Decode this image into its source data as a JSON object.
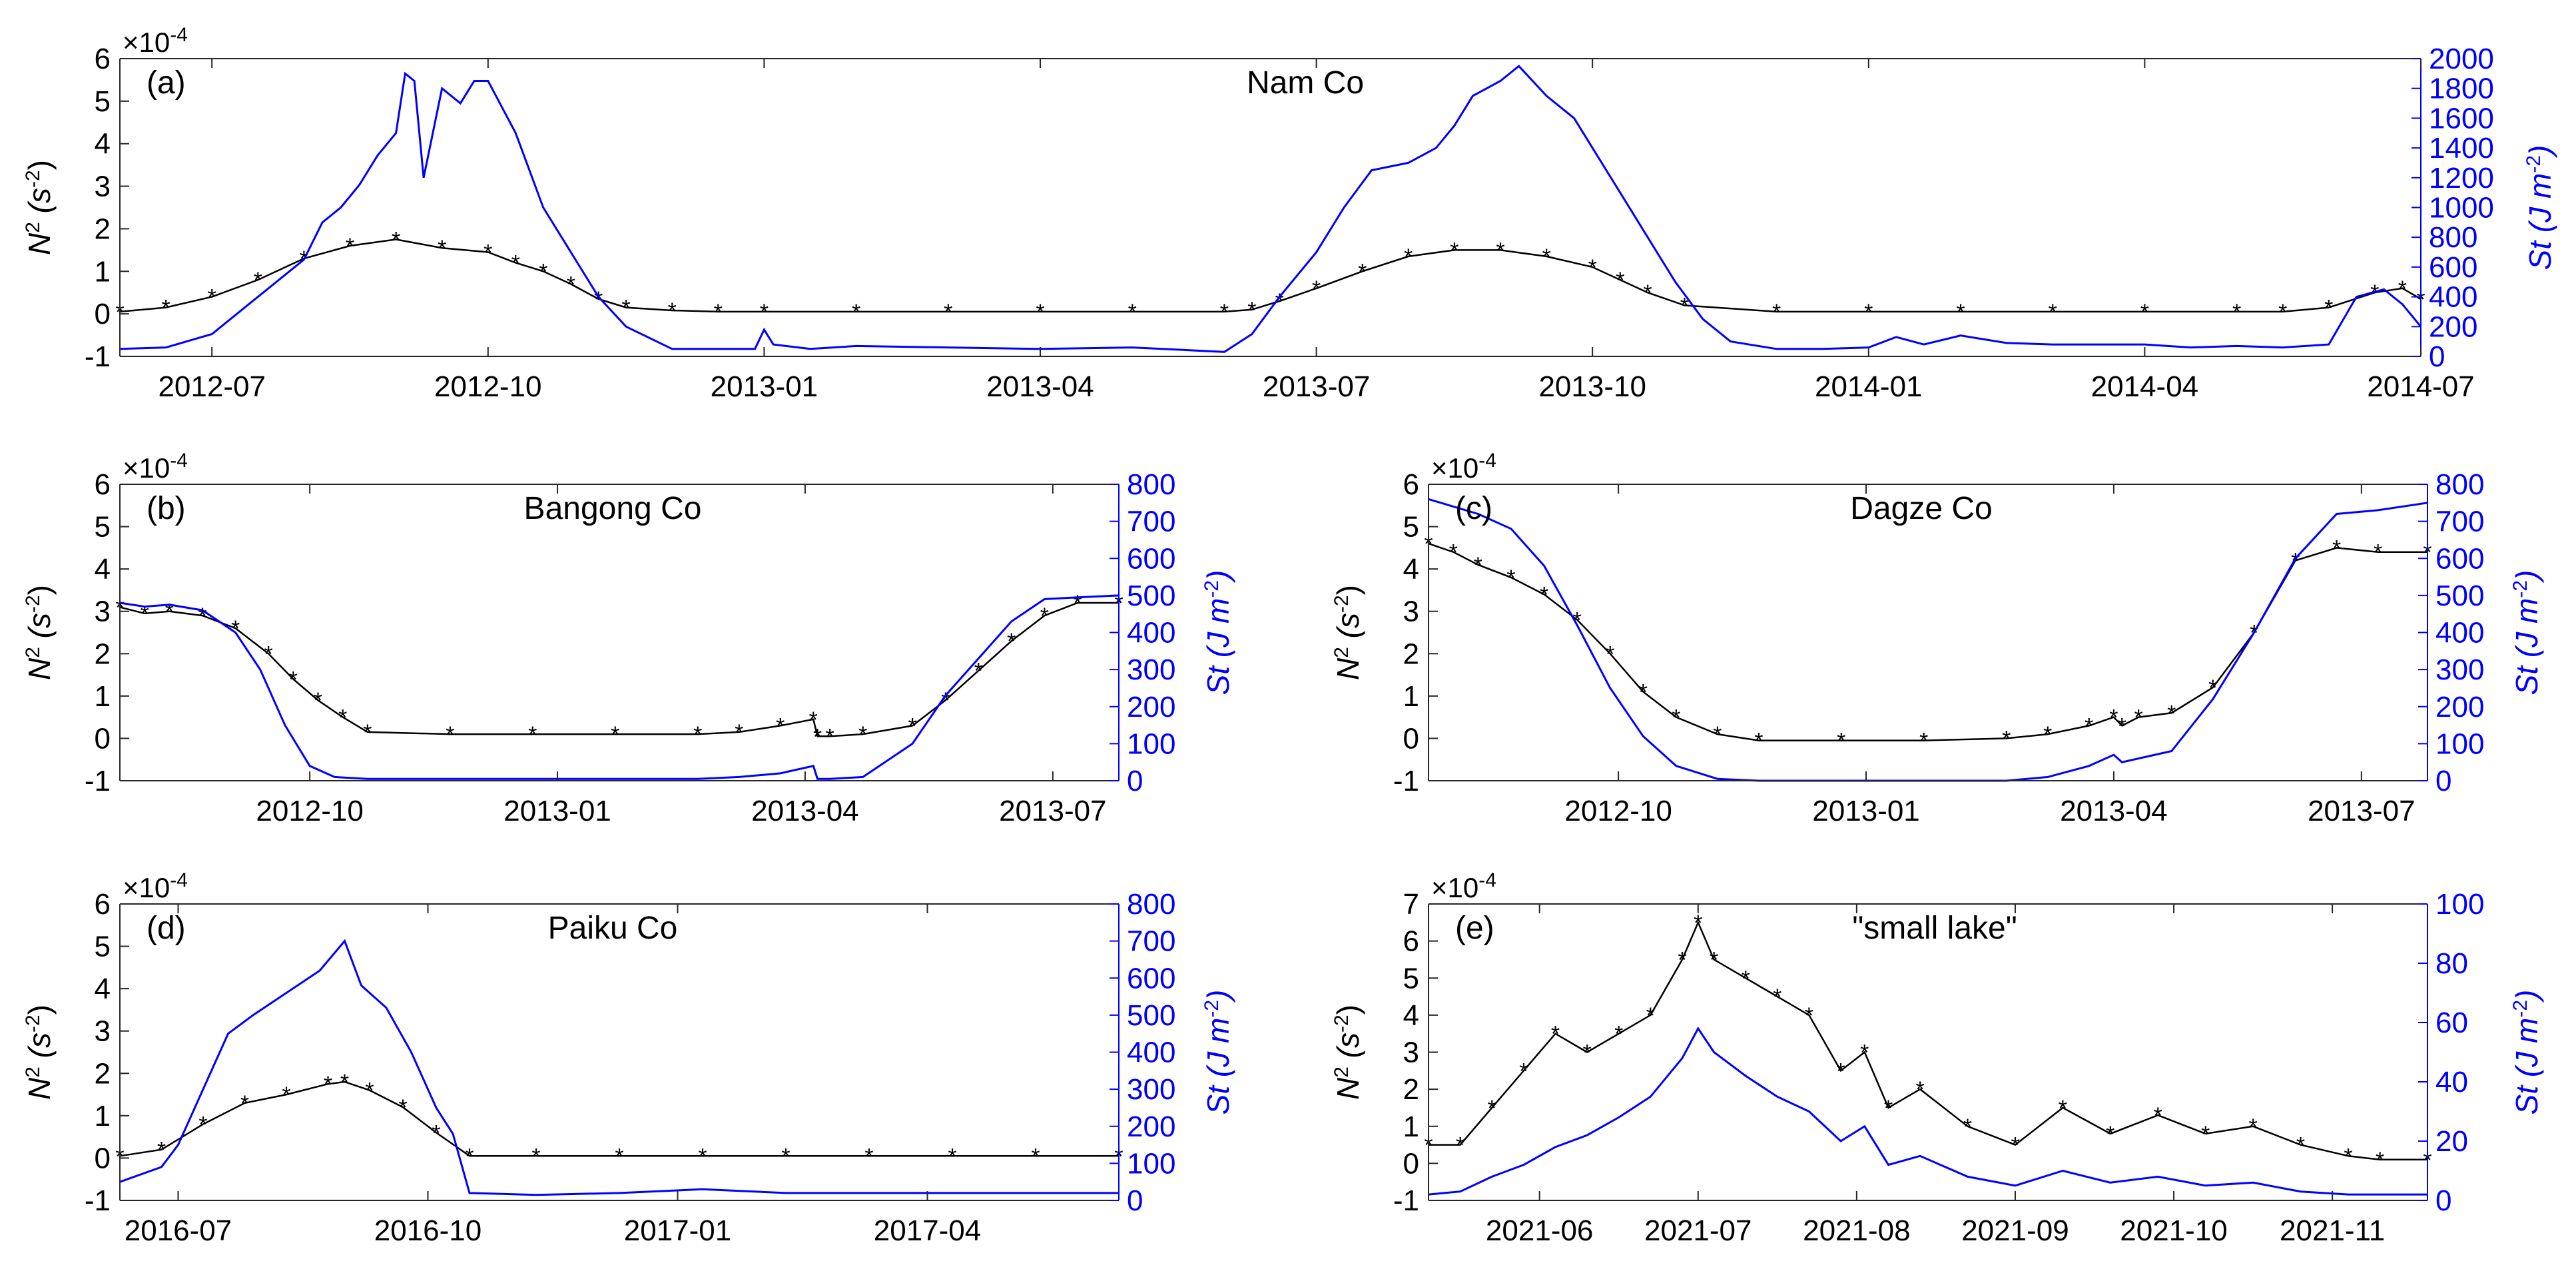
{
  "figure": {
    "colors": {
      "n2": "#000000",
      "st": "#0000ff",
      "axis": "#262626"
    }
  },
  "chart_data": [
    {
      "id": "a",
      "type": "line",
      "panel_label": "(a)",
      "title": "Nam Co",
      "y_left_label_base": "N",
      "y_left_label_sup": "2",
      "y_left_label_unit": " (s",
      "y_left_label_unit_sup": "-2",
      "y_left_label_close": ")",
      "y_left_exponent_base": "×10",
      "y_left_exponent_sup": "-4",
      "y_right_label_base": "St (J m",
      "y_right_label_sup": "-2",
      "y_right_label_close": ")",
      "xlim": [
        0,
        25
      ],
      "x_ticks": [
        {
          "x": 1,
          "label": "2012-07"
        },
        {
          "x": 4,
          "label": "2012-10"
        },
        {
          "x": 7,
          "label": "2013-01"
        },
        {
          "x": 10,
          "label": "2013-04"
        },
        {
          "x": 13,
          "label": "2013-07"
        },
        {
          "x": 16,
          "label": "2013-10"
        },
        {
          "x": 19,
          "label": "2014-01"
        },
        {
          "x": 22,
          "label": "2014-04"
        },
        {
          "x": 25,
          "label": "2014-07"
        }
      ],
      "ylim_left": [
        -1,
        6
      ],
      "y_left_ticks": [
        -1,
        0,
        1,
        2,
        3,
        4,
        5,
        6
      ],
      "ylim_right": [
        0,
        2000
      ],
      "y_right_ticks": [
        0,
        200,
        400,
        600,
        800,
        1000,
        1200,
        1400,
        1600,
        1800,
        2000
      ],
      "series": [
        {
          "name": "N2",
          "axis": "left",
          "x": [
            0,
            0.5,
            1,
            1.5,
            2,
            2.5,
            3,
            3.5,
            4,
            4.3,
            4.6,
            4.9,
            5.2,
            5.5,
            6,
            6.5,
            7,
            8,
            9,
            10,
            11,
            12,
            12.3,
            12.6,
            13,
            13.5,
            14,
            14.5,
            15,
            15.5,
            16,
            16.3,
            16.6,
            17,
            18,
            19,
            20,
            21,
            22,
            23,
            23.5,
            24,
            24.5,
            24.8,
            25
          ],
          "values": [
            0.05,
            0.15,
            0.4,
            0.8,
            1.3,
            1.6,
            1.75,
            1.55,
            1.45,
            1.2,
            1.0,
            0.7,
            0.35,
            0.15,
            0.08,
            0.05,
            0.05,
            0.05,
            0.05,
            0.05,
            0.05,
            0.05,
            0.1,
            0.3,
            0.6,
            1.0,
            1.35,
            1.5,
            1.5,
            1.35,
            1.1,
            0.8,
            0.5,
            0.2,
            0.05,
            0.05,
            0.05,
            0.05,
            0.05,
            0.05,
            0.05,
            0.15,
            0.5,
            0.6,
            0.35
          ]
        },
        {
          "name": "St",
          "axis": "right",
          "x": [
            0,
            0.5,
            1,
            1.3,
            1.6,
            2,
            2.2,
            2.4,
            2.6,
            2.8,
            3,
            3.1,
            3.2,
            3.3,
            3.5,
            3.7,
            3.85,
            4,
            4.3,
            4.6,
            4.9,
            5.2,
            5.5,
            6,
            6.5,
            6.9,
            7,
            7.1,
            7.5,
            8,
            9,
            10,
            11,
            12,
            12.3,
            12.6,
            13,
            13.3,
            13.6,
            14,
            14.3,
            14.5,
            14.7,
            15,
            15.2,
            15.5,
            15.8,
            16,
            16.3,
            16.6,
            16.9,
            17.2,
            17.5,
            18,
            18.5,
            19,
            19.3,
            19.6,
            20,
            20.5,
            21,
            22,
            22.5,
            23,
            23.5,
            24,
            24.3,
            24.6,
            24.8,
            25
          ],
          "values": [
            50,
            60,
            150,
            300,
            450,
            650,
            900,
            1000,
            1150,
            1350,
            1500,
            1900,
            1850,
            1200,
            1800,
            1700,
            1850,
            1850,
            1500,
            1000,
            700,
            400,
            200,
            50,
            50,
            50,
            180,
            80,
            50,
            70,
            60,
            50,
            60,
            30,
            150,
            400,
            700,
            1000,
            1250,
            1300,
            1400,
            1550,
            1750,
            1850,
            1950,
            1750,
            1600,
            1400,
            1100,
            800,
            500,
            250,
            100,
            50,
            50,
            60,
            130,
            80,
            140,
            90,
            80,
            80,
            60,
            70,
            60,
            80,
            400,
            450,
            350,
            200
          ]
        }
      ]
    },
    {
      "id": "b",
      "type": "line",
      "panel_label": "(b)",
      "title": "Bangong Co",
      "y_left_label_base": "N",
      "y_left_label_sup": "2",
      "y_left_label_unit": " (s",
      "y_left_label_unit_sup": "-2",
      "y_left_label_close": ")",
      "y_left_exponent_base": "×10",
      "y_left_exponent_sup": "-4",
      "y_right_label_base": "St (J m",
      "y_right_label_sup": "-2",
      "y_right_label_close": ")",
      "xlim": [
        0,
        12.1
      ],
      "x_ticks": [
        {
          "x": 2.3,
          "label": "2012-10"
        },
        {
          "x": 5.3,
          "label": "2013-01"
        },
        {
          "x": 8.3,
          "label": "2013-04"
        },
        {
          "x": 11.3,
          "label": "2013-07"
        }
      ],
      "ylim_left": [
        -1,
        6
      ],
      "y_left_ticks": [
        -1,
        0,
        1,
        2,
        3,
        4,
        5,
        6
      ],
      "ylim_right": [
        0,
        800
      ],
      "y_right_ticks": [
        0,
        100,
        200,
        300,
        400,
        500,
        600,
        700,
        800
      ],
      "series": [
        {
          "name": "N2",
          "axis": "left",
          "x": [
            0,
            0.3,
            0.6,
            1,
            1.4,
            1.8,
            2.1,
            2.4,
            2.7,
            3,
            4,
            5,
            6,
            7,
            7.5,
            8,
            8.4,
            8.45,
            8.6,
            9,
            9.6,
            10,
            10.4,
            10.8,
            11.2,
            11.6,
            12.1
          ],
          "values": [
            3.1,
            2.95,
            3.0,
            2.9,
            2.6,
            2.0,
            1.4,
            0.9,
            0.5,
            0.15,
            0.1,
            0.1,
            0.1,
            0.1,
            0.15,
            0.3,
            0.45,
            0.05,
            0.05,
            0.1,
            0.3,
            0.9,
            1.6,
            2.3,
            2.9,
            3.2,
            3.2
          ]
        },
        {
          "name": "St",
          "axis": "right",
          "x": [
            0,
            0.3,
            0.6,
            1,
            1.4,
            1.7,
            2,
            2.3,
            2.6,
            3,
            4,
            5,
            6,
            7,
            7.5,
            8,
            8.4,
            8.45,
            8.6,
            9,
            9.6,
            10,
            10.4,
            10.8,
            11.2,
            11.6,
            12.1
          ],
          "values": [
            480,
            470,
            475,
            460,
            400,
            300,
            150,
            40,
            10,
            5,
            5,
            5,
            5,
            5,
            10,
            20,
            40,
            5,
            5,
            10,
            100,
            230,
            330,
            430,
            490,
            495,
            500
          ]
        }
      ]
    },
    {
      "id": "c",
      "type": "line",
      "panel_label": "(c)",
      "title": "Dagze Co",
      "y_left_label_base": "N",
      "y_left_label_sup": "2",
      "y_left_label_unit": " (s",
      "y_left_label_unit_sup": "-2",
      "y_left_label_close": ")",
      "y_left_exponent_base": "×10",
      "y_left_exponent_sup": "-4",
      "y_right_label_base": "St (J m",
      "y_right_label_sup": "-2",
      "y_right_label_close": ")",
      "xlim": [
        0,
        12.1
      ],
      "x_ticks": [
        {
          "x": 2.3,
          "label": "2012-10"
        },
        {
          "x": 5.3,
          "label": "2013-01"
        },
        {
          "x": 8.3,
          "label": "2013-04"
        },
        {
          "x": 11.3,
          "label": "2013-07"
        }
      ],
      "ylim_left": [
        -1,
        6
      ],
      "y_left_ticks": [
        -1,
        0,
        1,
        2,
        3,
        4,
        5,
        6
      ],
      "ylim_right": [
        0,
        800
      ],
      "y_right_ticks": [
        0,
        100,
        200,
        300,
        400,
        500,
        600,
        700,
        800
      ],
      "series": [
        {
          "name": "N2",
          "axis": "left",
          "x": [
            0,
            0.3,
            0.6,
            1,
            1.4,
            1.8,
            2.2,
            2.6,
            3,
            3.5,
            4,
            5,
            6,
            7,
            7.5,
            8,
            8.3,
            8.4,
            8.6,
            9,
            9.5,
            10,
            10.5,
            11,
            11.5,
            12.1
          ],
          "values": [
            4.6,
            4.4,
            4.1,
            3.8,
            3.4,
            2.8,
            2.0,
            1.1,
            0.5,
            0.1,
            -0.05,
            -0.05,
            -0.05,
            0,
            0.1,
            0.3,
            0.5,
            0.3,
            0.5,
            0.6,
            1.2,
            2.5,
            4.2,
            4.5,
            4.4,
            4.4
          ]
        },
        {
          "name": "St",
          "axis": "right",
          "x": [
            0,
            0.3,
            0.6,
            1,
            1.4,
            1.8,
            2.2,
            2.6,
            3,
            3.5,
            4,
            5,
            6,
            7,
            7.5,
            8,
            8.3,
            8.4,
            8.6,
            9,
            9.5,
            10,
            10.5,
            11,
            11.5,
            12.1
          ],
          "values": [
            760,
            740,
            720,
            680,
            580,
            420,
            250,
            120,
            40,
            5,
            0,
            0,
            0,
            0,
            10,
            40,
            70,
            50,
            60,
            80,
            220,
            400,
            600,
            720,
            730,
            750
          ]
        }
      ]
    },
    {
      "id": "d",
      "type": "line",
      "panel_label": "(d)",
      "title": "Paiku Co",
      "y_left_label_base": "N",
      "y_left_label_sup": "2",
      "y_left_label_unit": " (s",
      "y_left_label_unit_sup": "-2",
      "y_left_label_close": ")",
      "y_left_exponent_base": "×10",
      "y_left_exponent_sup": "-4",
      "y_right_label_base": "St (J m",
      "y_right_label_sup": "-2",
      "y_right_label_close": ")",
      "xlim": [
        0,
        12
      ],
      "x_ticks": [
        {
          "x": 0.7,
          "label": "2016-07"
        },
        {
          "x": 3.7,
          "label": "2016-10"
        },
        {
          "x": 6.7,
          "label": "2017-01"
        },
        {
          "x": 9.7,
          "label": "2017-04"
        }
      ],
      "ylim_left": [
        -1,
        6
      ],
      "y_left_ticks": [
        -1,
        0,
        1,
        2,
        3,
        4,
        5,
        6
      ],
      "ylim_right": [
        0,
        800
      ],
      "y_right_ticks": [
        0,
        100,
        200,
        300,
        400,
        500,
        600,
        700,
        800
      ],
      "series": [
        {
          "name": "N2",
          "axis": "left",
          "x": [
            0,
            0.5,
            1,
            1.5,
            2,
            2.5,
            2.7,
            3,
            3.4,
            3.8,
            4.2,
            5,
            6,
            7,
            8,
            9,
            10,
            11,
            12
          ],
          "values": [
            0.05,
            0.2,
            0.8,
            1.3,
            1.5,
            1.75,
            1.8,
            1.6,
            1.2,
            0.6,
            0.05,
            0.05,
            0.05,
            0.05,
            0.05,
            0.05,
            0.05,
            0.05,
            0.05
          ]
        },
        {
          "name": "St",
          "axis": "right",
          "x": [
            0,
            0.5,
            0.7,
            1,
            1.3,
            1.6,
            2,
            2.4,
            2.7,
            2.9,
            3.2,
            3.5,
            3.8,
            4.0,
            4.2,
            5,
            6,
            7,
            8,
            9,
            10,
            11,
            12
          ],
          "values": [
            50,
            90,
            150,
            300,
            450,
            500,
            560,
            620,
            700,
            580,
            520,
            400,
            250,
            180,
            20,
            15,
            20,
            30,
            20,
            20,
            20,
            20,
            20
          ]
        }
      ]
    },
    {
      "id": "e",
      "type": "line",
      "panel_label": "(e)",
      "title": "\"small lake\"",
      "y_left_label_base": "N",
      "y_left_label_sup": "2",
      "y_left_label_unit": " (s",
      "y_left_label_unit_sup": "-2",
      "y_left_label_close": ")",
      "y_left_exponent_base": "×10",
      "y_left_exponent_sup": "-4",
      "y_right_label_base": "St (J m",
      "y_right_label_sup": "-2",
      "y_right_label_close": ")",
      "xlim": [
        0,
        6.3
      ],
      "x_ticks": [
        {
          "x": 0.7,
          "label": "2021-06"
        },
        {
          "x": 1.7,
          "label": "2021-07"
        },
        {
          "x": 2.7,
          "label": "2021-08"
        },
        {
          "x": 3.7,
          "label": "2021-09"
        },
        {
          "x": 4.7,
          "label": "2021-10"
        },
        {
          "x": 5.7,
          "label": "2021-11"
        }
      ],
      "ylim_left": [
        -1,
        7
      ],
      "y_left_ticks": [
        -1,
        0,
        1,
        2,
        3,
        4,
        5,
        6,
        7
      ],
      "ylim_right": [
        0,
        100
      ],
      "y_right_ticks": [
        0,
        20,
        40,
        60,
        80,
        100
      ],
      "series": [
        {
          "name": "N2",
          "axis": "left",
          "x": [
            0,
            0.2,
            0.4,
            0.6,
            0.8,
            1.0,
            1.2,
            1.4,
            1.6,
            1.7,
            1.8,
            2.0,
            2.2,
            2.4,
            2.6,
            2.75,
            2.9,
            3.1,
            3.4,
            3.7,
            4.0,
            4.3,
            4.6,
            4.9,
            5.2,
            5.5,
            5.8,
            6.0,
            6.3
          ],
          "values": [
            0.5,
            0.5,
            1.5,
            2.5,
            3.5,
            3.0,
            3.5,
            4.0,
            5.5,
            6.5,
            5.5,
            5.0,
            4.5,
            4.0,
            2.5,
            3.0,
            1.5,
            2.0,
            1.0,
            0.5,
            1.5,
            0.8,
            1.3,
            0.8,
            1.0,
            0.5,
            0.2,
            0.1,
            0.1
          ]
        },
        {
          "name": "St",
          "axis": "right",
          "x": [
            0,
            0.2,
            0.4,
            0.6,
            0.8,
            1.0,
            1.2,
            1.4,
            1.6,
            1.7,
            1.8,
            2.0,
            2.2,
            2.4,
            2.6,
            2.75,
            2.9,
            3.1,
            3.4,
            3.7,
            4.0,
            4.3,
            4.6,
            4.9,
            5.2,
            5.5,
            5.8,
            6.0,
            6.3
          ],
          "values": [
            2,
            3,
            8,
            12,
            18,
            22,
            28,
            35,
            48,
            58,
            50,
            42,
            35,
            30,
            20,
            25,
            12,
            15,
            8,
            5,
            10,
            6,
            8,
            5,
            6,
            3,
            2,
            2,
            2
          ]
        }
      ]
    }
  ]
}
